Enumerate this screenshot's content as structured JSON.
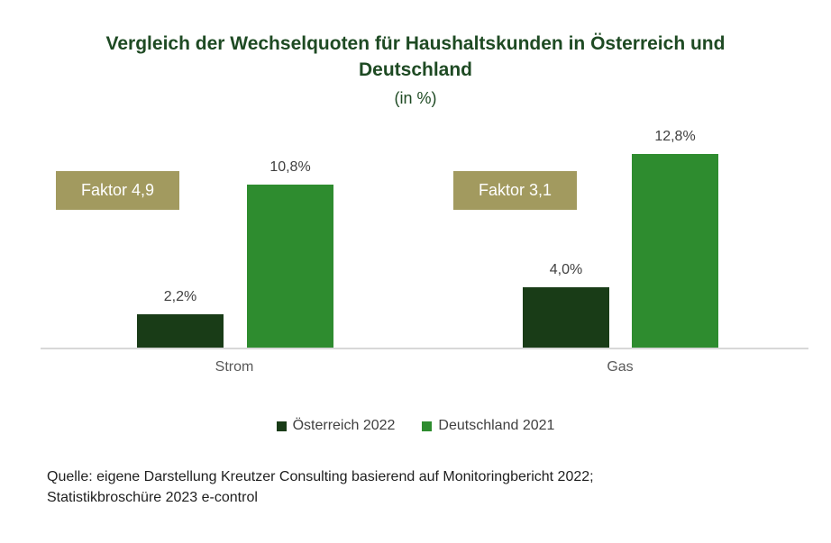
{
  "header": {
    "title_line1": "Vergleich der Wechselquoten für Haushaltskunden in Österreich und",
    "title_line2": "Deutschland",
    "subtitle": "(in %)"
  },
  "chart_data": {
    "type": "bar",
    "title": "Vergleich der Wechselquoten für Haushaltskunden in Österreich und Deutschland",
    "subtitle": "(in %)",
    "categories": [
      "Strom",
      "Gas"
    ],
    "series": [
      {
        "name": "Österreich 2022",
        "values": [
          2.2,
          4.0
        ],
        "data_labels": [
          "2,2%",
          "4,0%"
        ],
        "color": "#193c17"
      },
      {
        "name": "Deutschland 2021",
        "values": [
          10.8,
          12.8
        ],
        "data_labels": [
          "10,8%",
          "12,8%"
        ],
        "color": "#2e8c2f"
      }
    ],
    "annotations": [
      {
        "text": "Faktor 4,9",
        "category": "Strom"
      },
      {
        "text": "Faktor 3,1",
        "category": "Gas"
      }
    ],
    "ylim": [
      0,
      14
    ],
    "grid": false,
    "value_axis_visible": false,
    "legend_position": "bottom"
  },
  "source": {
    "line1": "Quelle: eigene Darstellung Kreutzer Consulting basierend auf Monitoringbericht 2022;",
    "line2": "Statistikbroschüre 2023 e-control"
  },
  "colors": {
    "title": "#1e4a23",
    "bar_austria": "#193c17",
    "bar_germany": "#2e8c2f",
    "factor_box": "#a29a5f",
    "factor_text": "#ffffff",
    "axis_line": "#d8d8d8",
    "value_label": "#404040",
    "category_label": "#595959",
    "legend_text": "#404040",
    "source_text": "#1f1f1f"
  }
}
